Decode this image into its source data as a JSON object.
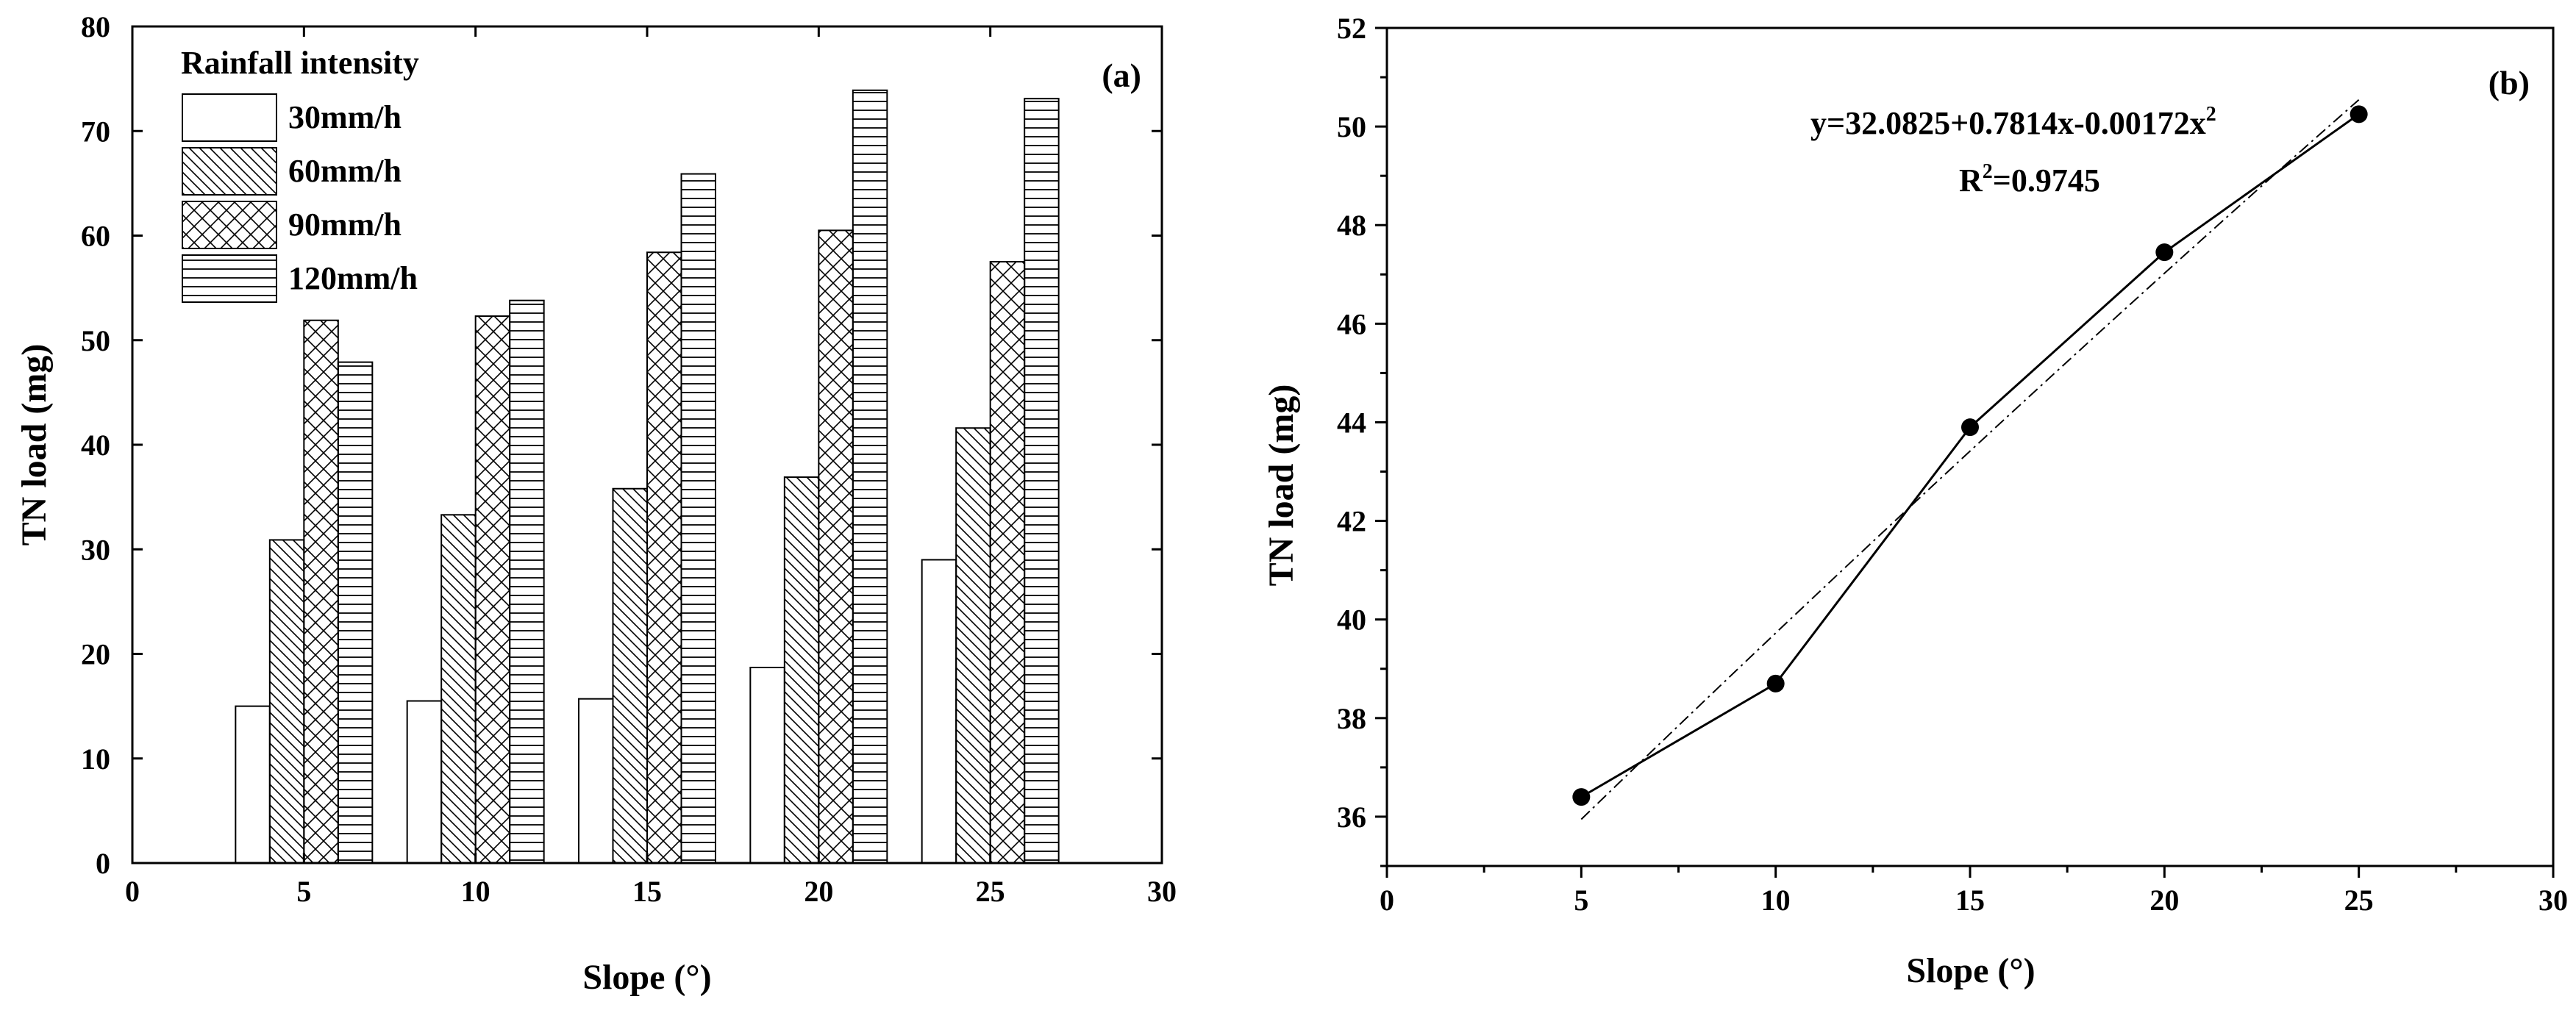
{
  "chart_data": [
    {
      "type": "bar",
      "panel_label": "(a)",
      "xlabel": "Slope (°)",
      "ylabel": "TN load (mg)",
      "xlim": [
        0,
        30
      ],
      "ylim": [
        0,
        80
      ],
      "xticks": [
        0,
        5,
        10,
        15,
        20,
        25,
        30
      ],
      "yticks": [
        0,
        10,
        20,
        30,
        40,
        50,
        60,
        70,
        80
      ],
      "categories": [
        5,
        10,
        15,
        20,
        25
      ],
      "legend_title": "Rainfall intensity",
      "legend_position": "top-left",
      "series": [
        {
          "name": "30mm/h",
          "pattern": "blank",
          "values": [
            15.0,
            15.5,
            15.7,
            18.7,
            29.0
          ]
        },
        {
          "name": "60mm/h",
          "pattern": "diagonal",
          "values": [
            30.9,
            33.3,
            35.8,
            36.9,
            41.6
          ]
        },
        {
          "name": "90mm/h",
          "pattern": "crosshatch",
          "values": [
            51.9,
            52.3,
            58.4,
            60.5,
            57.5
          ]
        },
        {
          "name": "120mm/h",
          "pattern": "horizontal",
          "values": [
            47.9,
            53.8,
            65.9,
            73.9,
            73.1
          ]
        }
      ]
    },
    {
      "type": "line",
      "panel_label": "(b)",
      "xlabel": "Slope (°)",
      "ylabel": "TN load (mg)",
      "xlim": [
        0,
        30
      ],
      "ylim": [
        35,
        52
      ],
      "xticks": [
        0,
        5,
        10,
        15,
        20,
        25,
        30
      ],
      "yticks": [
        36,
        38,
        40,
        42,
        44,
        46,
        48,
        50,
        52
      ],
      "x": [
        5,
        10,
        15,
        20,
        25
      ],
      "y": [
        36.4,
        38.7,
        43.9,
        47.45,
        50.25
      ],
      "fit": {
        "c0": 32.0825,
        "c1": 0.7814,
        "c2": -0.00172,
        "style": "dash-dot"
      },
      "equation_main": "y=32.0825+0.7814x-0.00172x",
      "equation_sup": "2",
      "r2_prefix": "R",
      "r2_sup": "2",
      "r2_value": "=0.9745"
    }
  ]
}
